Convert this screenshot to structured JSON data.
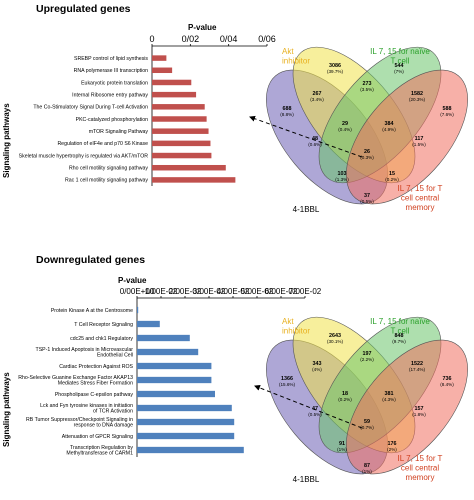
{
  "figure": {
    "panel_titles": [
      "Upregulated genes",
      "Downregulated genes"
    ],
    "y_axis_label": "Signaling pathways",
    "x_axis_label": "P-value"
  },
  "chart_data": [
    {
      "type": "bar",
      "orientation": "horizontal",
      "title": "Upregulated genes",
      "xlabel": "P-value",
      "ylabel": "Signaling pathways",
      "xlim": [
        0,
        0.06
      ],
      "xticks": [
        "0",
        "0/02",
        "0/04",
        "0/06"
      ],
      "bar_color": "#c0504d",
      "categories": [
        "SREBP control of lipid synthesis",
        "RNA polymerase III transcription",
        "Eukaryotic protein translation",
        "Internal Ribosome entry pathway",
        "The Co-Stimulatory Signal During T-cell Activation",
        "PKC-catalyzed phosphorylation",
        "mTOR Signaling Pathway",
        "Regulation of eIF4e and p70 S6 Kinase",
        "Skeletal muscle hypertrophy is regulated via AKT/mTOR",
        "Rho cell motility signaling pathway",
        "Rac 1 cell motility signaling pathway"
      ],
      "values": [
        0.0075,
        0.0105,
        0.0205,
        0.023,
        0.0275,
        0.0285,
        0.0295,
        0.0305,
        0.031,
        0.0385,
        0.0435
      ]
    },
    {
      "type": "bar",
      "orientation": "horizontal",
      "title": "Downregulated genes",
      "xlabel": "P-value",
      "ylabel": "Signaling pathways",
      "xlim": [
        0,
        0.07
      ],
      "xticks": [
        "0/00E+00",
        "1/00E-02",
        "2/00E-02",
        "3/00E-02",
        "4/00E-02",
        "5/00E-02",
        "6/00E-02",
        "7/00E-02"
      ],
      "bar_color": "#4f81bd",
      "categories": [
        "Protein Kinase A at the Centrosome",
        "T Cell Receptor Signaling",
        "cdc25 and chk1 Regulatory",
        "TSP-1 Induced Apoptosis in Microvascular Endothelial Cell",
        "Cardiac Protection Against ROS",
        "Rho-Selective Guanine Exchange Factor AKAP13 Mediates Stress Fiber Formation",
        "Phospholipase C-epsilon pathway",
        "Lck and Fyn tyrosine kinases in initiation of TCR Activation",
        "RB Tumor Suppressor/Checkpoint Signaling in response to DNA damage",
        "Attenuation of GPCR Signaling",
        "Transcription Regulation by Methyltransferase of CARM1"
      ],
      "values": [
        0.0005,
        0.0095,
        0.022,
        0.0255,
        0.031,
        0.031,
        0.0325,
        0.0395,
        0.0405,
        0.0405,
        0.0445
      ]
    },
    {
      "type": "venn",
      "title": "",
      "sets": [
        {
          "name": "4-1BBL",
          "color": "#6b5fb5"
        },
        {
          "name": "Akt inhibitor",
          "color": "#f0e24a",
          "label_color": "#e8b020"
        },
        {
          "name": "IL 7, 15 for naïve T cell",
          "color": "#6cc46c",
          "label_color": "#2aa02a"
        },
        {
          "name": "IL 7, 15 for T cell central memory",
          "color": "#f07060",
          "label_color": "#d04020"
        }
      ],
      "regions": [
        {
          "count": "688",
          "pct": "(8.8%)"
        },
        {
          "count": "3086",
          "pct": "(39.7%)"
        },
        {
          "count": "544",
          "pct": "(7%)"
        },
        {
          "count": "588",
          "pct": "(7.6%)"
        },
        {
          "count": "267",
          "pct": "(3.4%)"
        },
        {
          "count": "273",
          "pct": "(3.5%)"
        },
        {
          "count": "1582",
          "pct": "(20.3%)"
        },
        {
          "count": "48",
          "pct": "(0.6%)"
        },
        {
          "count": "29",
          "pct": "(0.4%)"
        },
        {
          "count": "384",
          "pct": "(4.9%)"
        },
        {
          "count": "117",
          "pct": "(1.5%)"
        },
        {
          "count": "26",
          "pct": "(0.3%)"
        },
        {
          "count": "103",
          "pct": "(1.3%)"
        },
        {
          "count": "15",
          "pct": "(0.2%)"
        },
        {
          "count": "37",
          "pct": "(0.5%)"
        }
      ]
    },
    {
      "type": "venn",
      "title": "",
      "sets": [
        {
          "name": "4-1BBL",
          "color": "#6b5fb5"
        },
        {
          "name": "Akt inhibitor",
          "color": "#f0e24a",
          "label_color": "#e8b020"
        },
        {
          "name": "IL 7, 15 for naïve T cell",
          "color": "#6cc46c",
          "label_color": "#2aa02a"
        },
        {
          "name": "IL 7, 15 for T cell central memory",
          "color": "#f07060",
          "label_color": "#d04020"
        }
      ],
      "regions": [
        {
          "count": "1366",
          "pct": "(15.6%)"
        },
        {
          "count": "2643",
          "pct": "(30.1%)"
        },
        {
          "count": "848",
          "pct": "(9.7%)"
        },
        {
          "count": "736",
          "pct": "(8.4%)"
        },
        {
          "count": "343",
          "pct": "(4%)"
        },
        {
          "count": "197",
          "pct": "(2.2%)"
        },
        {
          "count": "1522",
          "pct": "(17.4%)"
        },
        {
          "count": "47",
          "pct": "(0.5%)"
        },
        {
          "count": "18",
          "pct": "(0.2%)"
        },
        {
          "count": "381",
          "pct": "(4.3%)"
        },
        {
          "count": "157",
          "pct": "(1.8%)"
        },
        {
          "count": "59",
          "pct": "(0.7%)"
        },
        {
          "count": "91",
          "pct": "(1%)"
        },
        {
          "count": "176",
          "pct": "(2%)"
        },
        {
          "count": "87",
          "pct": "(1%)"
        }
      ]
    }
  ]
}
